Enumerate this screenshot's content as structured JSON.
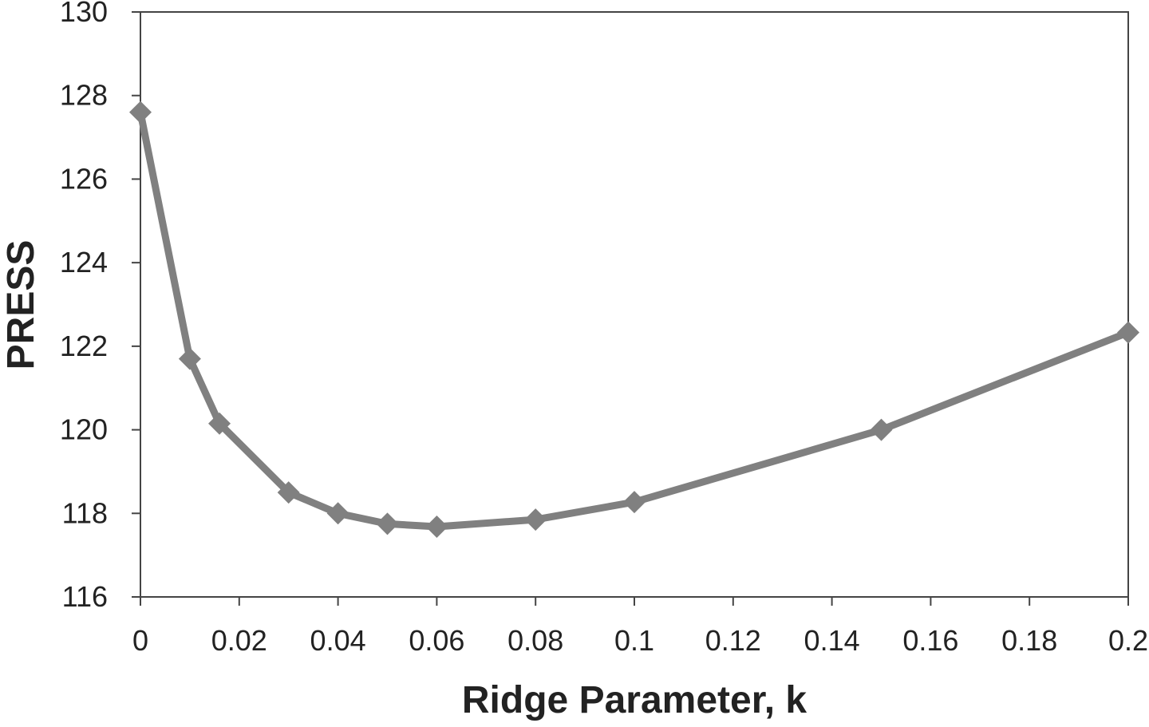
{
  "chart_data": {
    "type": "line",
    "title": "",
    "xlabel": "Ridge Parameter, k",
    "ylabel": "PRESS",
    "xlim": [
      0,
      0.2
    ],
    "ylim": [
      116,
      130
    ],
    "x_ticks": [
      0,
      0.02,
      0.04,
      0.06,
      0.08,
      0.1,
      0.12,
      0.14,
      0.16,
      0.18,
      0.2
    ],
    "x_tick_labels": [
      "0",
      "0.02",
      "0.04",
      "0.06",
      "0.08",
      "0.1",
      "0.12",
      "0.14",
      "0.16",
      "0.18",
      "0.2"
    ],
    "y_ticks": [
      116,
      118,
      120,
      122,
      124,
      126,
      128,
      130
    ],
    "y_tick_labels": [
      "116",
      "118",
      "120",
      "122",
      "124",
      "126",
      "128",
      "130"
    ],
    "grid": false,
    "legend": "none",
    "marker": "diamond",
    "series": [
      {
        "color": "#808080",
        "x": [
          0,
          0.01,
          0.016,
          0.03,
          0.04,
          0.05,
          0.06,
          0.08,
          0.1,
          0.15,
          0.2
        ],
        "y": [
          127.6,
          121.7,
          120.15,
          118.5,
          118.0,
          117.75,
          117.68,
          117.85,
          118.27,
          120.0,
          122.33
        ]
      }
    ]
  }
}
